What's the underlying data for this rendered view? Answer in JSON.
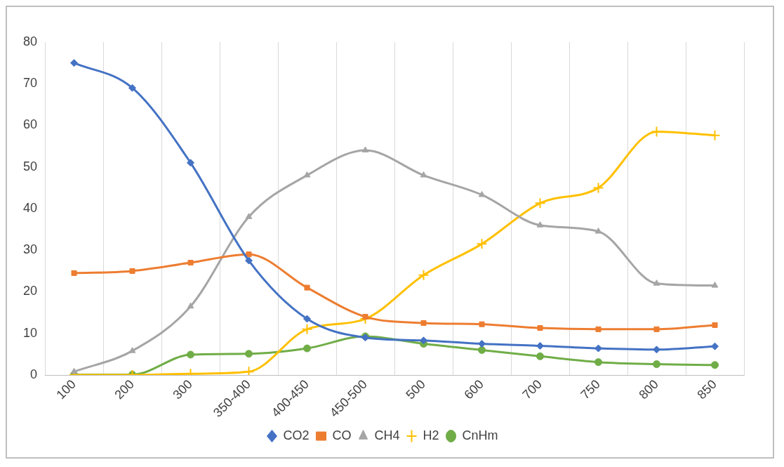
{
  "chart_data": {
    "type": "line",
    "categories": [
      "100",
      "200",
      "300",
      "350-400",
      "400-450",
      "450-500",
      "500",
      "600",
      "700",
      "750",
      "800",
      "850"
    ],
    "ylim": [
      0,
      80
    ],
    "yticks": [
      0,
      10,
      20,
      30,
      40,
      50,
      60,
      70,
      80
    ],
    "grid": "x",
    "legend": "bottom",
    "series": [
      {
        "name": "CO2",
        "color": "#4472c4",
        "marker": "diamond",
        "values": [
          75,
          69,
          51,
          27.5,
          13.5,
          9,
          8.3,
          7.5,
          7,
          6.4,
          6.1,
          6.9
        ]
      },
      {
        "name": "CO",
        "color": "#ed7d31",
        "marker": "square",
        "values": [
          24.5,
          25,
          27,
          29,
          21,
          14,
          12.5,
          12.2,
          11.3,
          11,
          11,
          12
        ]
      },
      {
        "name": "CH4",
        "color": "#a5a5a5",
        "marker": "triangle",
        "values": [
          0.8,
          5.8,
          16.5,
          38,
          48,
          54,
          48,
          43.3,
          36,
          34.5,
          22,
          21.5
        ]
      },
      {
        "name": "H2",
        "color": "#ffc000",
        "marker": "cross",
        "values": [
          0,
          0,
          0.3,
          0.8,
          11,
          13.5,
          24,
          31.5,
          41.3,
          45,
          58.5,
          57.6
        ]
      },
      {
        "name": "CnHm",
        "color": "#70ad47",
        "marker": "circle",
        "values": [
          0.1,
          0.1,
          4.9,
          5.1,
          6.4,
          9.3,
          7.5,
          6,
          4.5,
          3.1,
          2.6,
          2.4
        ]
      }
    ]
  }
}
